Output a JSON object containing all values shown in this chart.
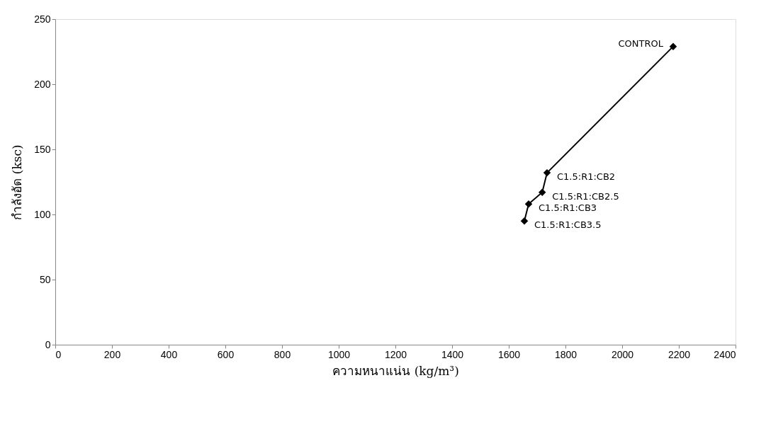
{
  "chart_data": {
    "type": "line",
    "xlabel": "ความหนาแน่น (kg/m³)",
    "ylabel": "กำลังอัด (ksc)",
    "x": [
      2180,
      1735,
      1718,
      1670,
      1655
    ],
    "series": [
      {
        "color": "#000000",
        "values": [
          229,
          132,
          117,
          108,
          95
        ]
      }
    ],
    "annotations": [
      {
        "text": "CONTROL",
        "x": 2180,
        "y": 229
      },
      {
        "text": "C1.5:R1:CB2",
        "x": 1735,
        "y": 132
      },
      {
        "text": "C1.5:R1:CB2.5",
        "x": 1718,
        "y": 117
      },
      {
        "text": "C1.5:R1:CB3",
        "x": 1670,
        "y": 108
      },
      {
        "text": "C1.5:R1:CB3.5",
        "x": 1655,
        "y": 95
      }
    ],
    "xlim": [
      0,
      2400
    ],
    "xticks": [
      0,
      200,
      400,
      600,
      800,
      1000,
      1200,
      1400,
      1600,
      1800,
      2000,
      2200,
      2400
    ],
    "ylim": [
      0,
      250
    ],
    "yticks": [
      0,
      50,
      100,
      150,
      200,
      250
    ],
    "grid": false,
    "marker": "diamond",
    "line_style": "solid"
  }
}
